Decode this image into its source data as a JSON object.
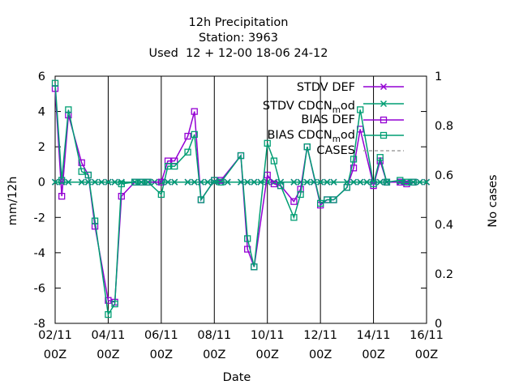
{
  "chart_data": {
    "type": "line",
    "title_lines": [
      "12h Precipitation",
      "Station:     3963",
      "Used  12 + 12-00 18-06 24-12"
    ],
    "xlabel": "Date",
    "ylabel": "mm/12h",
    "y2label": "No cases",
    "ylim": [
      -8,
      6
    ],
    "y2lim": [
      0,
      1
    ],
    "yticks": [
      "6",
      "4",
      "2",
      "0",
      "-2",
      "-4",
      "-6",
      "-8"
    ],
    "y2ticks": [
      "1",
      "0.8",
      "0.6",
      "0.4",
      "0.2",
      "0"
    ],
    "xticks": [
      {
        "date": "02/11",
        "hour": "00Z"
      },
      {
        "date": "04/11",
        "hour": "00Z"
      },
      {
        "date": "06/11",
        "hour": "00Z"
      },
      {
        "date": "08/11",
        "hour": "00Z"
      },
      {
        "date": "10/11",
        "hour": "00Z"
      },
      {
        "date": "12/11",
        "hour": "00Z"
      },
      {
        "date": "14/11",
        "hour": "00Z"
      },
      {
        "date": "16/11",
        "hour": "00Z"
      }
    ],
    "x_days_from_02_11": [
      0.0,
      0.25,
      0.5,
      1.0,
      1.25,
      1.5,
      1.75,
      2.0,
      2.25,
      2.5,
      3.0,
      3.25,
      3.5,
      3.75,
      4.0,
      4.25,
      4.5,
      5.0,
      5.25,
      5.5,
      5.75,
      6.0,
      6.25,
      6.5,
      7.0,
      7.25,
      7.5,
      7.75,
      8.0,
      8.25,
      8.5,
      9.0,
      9.25,
      9.5,
      9.75,
      10.0,
      10.25,
      10.5,
      11.0,
      11.25,
      11.5,
      11.75,
      12.0,
      12.25,
      12.5,
      13.0,
      13.25,
      13.5,
      13.75,
      14.0
    ],
    "legend_position": "top-right",
    "series": [
      {
        "name": "STDV DEF",
        "color": "#9400d3",
        "marker": "x",
        "values": [
          0.0,
          0.0,
          0.0,
          0.0,
          0.0,
          0.0,
          0.0,
          0.0,
          0.0,
          0.0,
          0.0,
          0.0,
          0.0,
          0.0,
          0.0,
          0.0,
          0.0,
          0.0,
          0.0,
          0.0,
          0.0,
          0.0,
          0.0,
          0.0,
          0.0,
          0.0,
          0.0,
          0.0,
          0.0,
          0.0,
          0.0,
          0.0,
          0.0,
          0.0,
          0.0,
          0.0,
          0.0,
          0.0,
          0.0,
          0.0,
          0.0,
          0.0,
          0.0,
          0.0,
          0.0,
          0.0,
          0.0,
          0.0,
          0.0,
          0.0
        ]
      },
      {
        "name": "STDV CDCN_mod",
        "color": "#009e73",
        "marker": "x",
        "values": [
          0.0,
          0.0,
          0.0,
          0.0,
          0.0,
          0.0,
          0.0,
          0.0,
          0.0,
          0.0,
          0.0,
          0.0,
          0.0,
          0.0,
          0.0,
          0.0,
          0.0,
          0.0,
          0.0,
          0.0,
          0.0,
          0.0,
          0.0,
          0.0,
          0.0,
          0.0,
          0.0,
          0.0,
          0.0,
          0.0,
          0.0,
          0.0,
          0.0,
          0.0,
          0.0,
          0.0,
          0.0,
          0.0,
          0.0,
          0.0,
          0.0,
          0.0,
          0.0,
          0.0,
          0.0,
          0.0,
          0.0,
          0.0,
          0.0,
          0.0
        ]
      },
      {
        "name": "BIAS DEF",
        "color": "#9400d3",
        "marker": "square",
        "points": [
          [
            0.0,
            5.3
          ],
          [
            0.25,
            -0.8
          ],
          [
            0.5,
            3.8
          ],
          [
            1.0,
            1.1
          ],
          [
            1.25,
            0.4
          ],
          [
            1.5,
            -2.5
          ],
          [
            2.0,
            -6.7
          ],
          [
            2.25,
            -6.8
          ],
          [
            2.5,
            -0.8
          ],
          [
            3.0,
            0.0
          ],
          [
            3.25,
            0.0
          ],
          [
            3.5,
            0.0
          ],
          [
            4.0,
            0.0
          ],
          [
            4.25,
            1.2
          ],
          [
            4.5,
            1.2
          ],
          [
            5.0,
            2.6
          ],
          [
            5.25,
            4.0
          ],
          [
            5.5,
            -1.0
          ],
          [
            6.0,
            0.1
          ],
          [
            6.25,
            0.1
          ],
          [
            7.0,
            1.5
          ],
          [
            7.25,
            -3.8
          ],
          [
            7.5,
            -4.8
          ],
          [
            8.0,
            0.4
          ],
          [
            8.25,
            -0.1
          ],
          [
            8.5,
            -0.2
          ],
          [
            9.0,
            -1.1
          ],
          [
            9.25,
            -0.4
          ],
          [
            9.5,
            2.0
          ],
          [
            10.0,
            -1.3
          ],
          [
            10.25,
            -1.0
          ],
          [
            10.5,
            -1.0
          ],
          [
            11.0,
            -0.3
          ],
          [
            11.25,
            0.8
          ],
          [
            11.5,
            3.0
          ],
          [
            12.0,
            -0.2
          ],
          [
            12.25,
            1.2
          ],
          [
            12.5,
            0.0
          ],
          [
            13.0,
            0.0
          ],
          [
            13.25,
            -0.1
          ],
          [
            13.5,
            0.0
          ]
        ]
      },
      {
        "name": "BIAS CDCN_mod",
        "color": "#009e73",
        "marker": "square",
        "points": [
          [
            0.0,
            5.6
          ],
          [
            0.25,
            0.1
          ],
          [
            0.5,
            4.1
          ],
          [
            1.0,
            0.6
          ],
          [
            1.25,
            0.4
          ],
          [
            1.5,
            -2.2
          ],
          [
            2.0,
            -7.5
          ],
          [
            2.25,
            -6.9
          ],
          [
            2.5,
            -0.1
          ],
          [
            3.0,
            0.0
          ],
          [
            3.25,
            0.0
          ],
          [
            3.5,
            0.0
          ],
          [
            4.0,
            -0.7
          ],
          [
            4.25,
            0.9
          ],
          [
            4.5,
            0.9
          ],
          [
            5.0,
            1.7
          ],
          [
            5.25,
            2.7
          ],
          [
            5.5,
            -1.0
          ],
          [
            6.0,
            0.1
          ],
          [
            6.25,
            0.0
          ],
          [
            7.0,
            1.5
          ],
          [
            7.25,
            -3.2
          ],
          [
            7.5,
            -4.8
          ],
          [
            8.0,
            2.2
          ],
          [
            8.25,
            1.2
          ],
          [
            8.5,
            -0.2
          ],
          [
            9.0,
            -2.0
          ],
          [
            9.25,
            -0.7
          ],
          [
            9.5,
            2.0
          ],
          [
            10.0,
            -1.2
          ],
          [
            10.25,
            -1.0
          ],
          [
            10.5,
            -1.0
          ],
          [
            11.0,
            -0.3
          ],
          [
            11.25,
            1.3
          ],
          [
            11.5,
            4.1
          ],
          [
            12.0,
            -0.1
          ],
          [
            12.25,
            1.4
          ],
          [
            12.5,
            0.0
          ],
          [
            13.0,
            0.1
          ],
          [
            13.25,
            0.0
          ],
          [
            13.5,
            0.0
          ]
        ]
      },
      {
        "name": "CASES",
        "color": "#a0a0a0",
        "marker": "none",
        "dashed": true,
        "values": []
      }
    ]
  }
}
